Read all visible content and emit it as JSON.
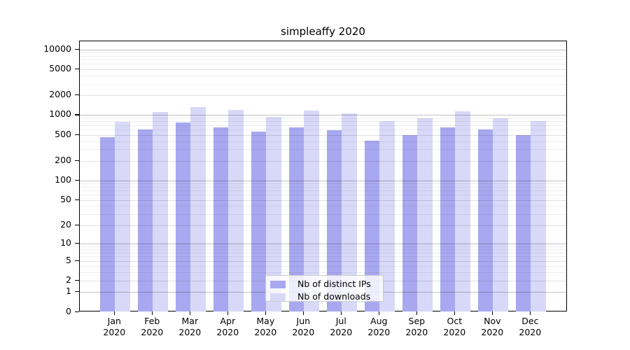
{
  "chart_data": {
    "type": "bar",
    "title": "simpleaffy 2020",
    "categories": [
      "Jan 2020",
      "Feb 2020",
      "Mar 2020",
      "Apr 2020",
      "May 2020",
      "Jun 2020",
      "Jul 2020",
      "Aug 2020",
      "Sep 2020",
      "Oct 2020",
      "Nov 2020",
      "Dec 2020"
    ],
    "series": [
      {
        "name": "Nb of distinct IPs",
        "color": "#a8a8f0",
        "values": [
          460,
          600,
          765,
          650,
          555,
          640,
          585,
          405,
          490,
          640,
          600,
          490
        ]
      },
      {
        "name": "Nb of downloads",
        "color": "#d8d8f8",
        "values": [
          795,
          1115,
          1310,
          1195,
          935,
          1175,
          1065,
          815,
          885,
          1150,
          890,
          815
        ]
      }
    ],
    "yscale": "log10(value+1)",
    "yticks": [
      0,
      1,
      2,
      5,
      10,
      20,
      50,
      100,
      200,
      500,
      1000,
      2000,
      5000,
      10000
    ],
    "ylim": [
      0,
      13600
    ],
    "xlabel": "",
    "ylabel": "",
    "grid": "both, drawn over bars",
    "legend_position": "lower center",
    "colors": {
      "bar_ips": "#a8a8f0",
      "bar_downloads": "#d8d8f8",
      "grid_decade": "rgba(0,0,0,0.24)",
      "grid_labeled": "rgba(0,0,0,0.12)",
      "grid_minor": "rgba(0,0,0,0.065)",
      "axis": "#000000",
      "legend_border": "#cccccc"
    }
  }
}
